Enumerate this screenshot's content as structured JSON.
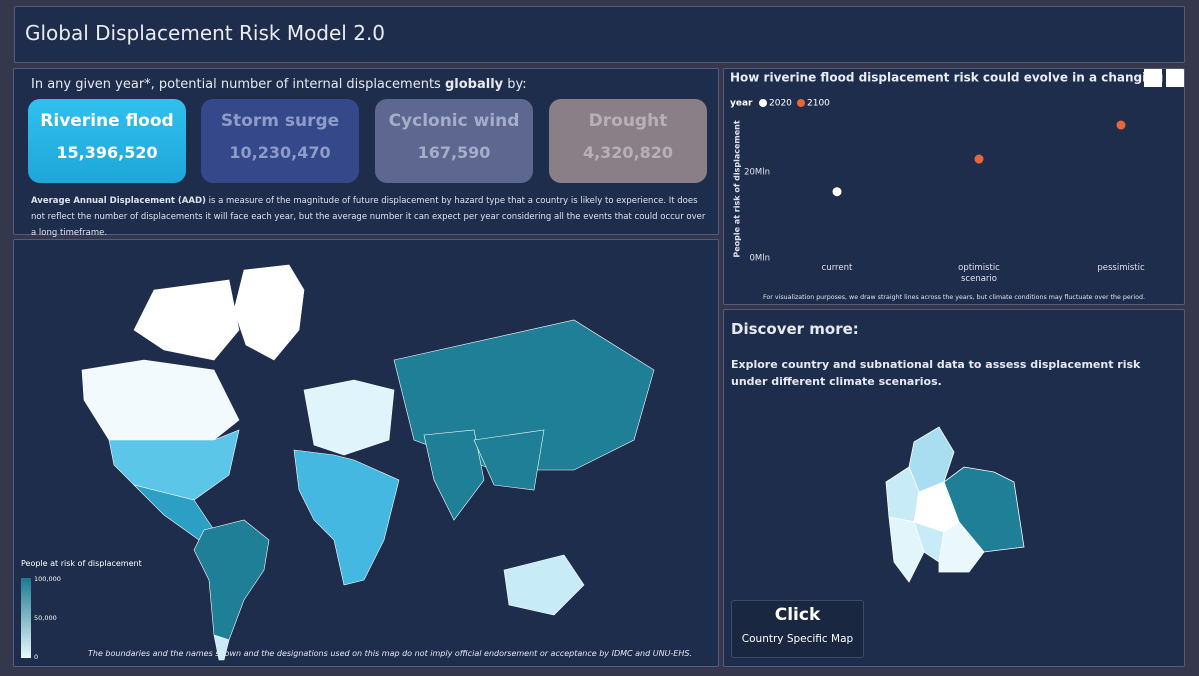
{
  "header": {
    "title": "Global Displacement Risk Model 2.0"
  },
  "summary": {
    "intro_prefix": "In any given year*, potential number of internal displacements",
    "intro_bold": "globally",
    "intro_suffix": "by:",
    "cards": [
      {
        "label": "Riverine flood",
        "value": "15,396,520"
      },
      {
        "label": "Storm surge",
        "value": "10,230,470"
      },
      {
        "label": "Cyclonic wind",
        "value": "167,590"
      },
      {
        "label": "Drought",
        "value": "4,320,820"
      }
    ],
    "note_bold": "Average Annual Displacement (AAD)",
    "note_text": "is a measure of the magnitude of future displacement by hazard type that a country is likely to experience. It does not reflect the number of displacements it will face each year, but the average number it can expect per year considering all the events that could occur over a long timeframe."
  },
  "map": {
    "legend_title": "People at risk of displacement",
    "legend_ticks": [
      "100,000",
      "50,000",
      "0"
    ],
    "disclaimer": "The boundaries and the names shown and the designations used on this map do not imply official endorsement or acceptance by IDMC and UNU-EHS."
  },
  "chart_data": {
    "type": "scatter",
    "title": "How riverine flood displacement risk could evolve in a changing clima",
    "legend_title": "year",
    "y_label": "People at risk of displacement",
    "categories": [
      "current",
      "optimistic scenario",
      "pessimistic"
    ],
    "series": [
      {
        "name": "2020",
        "color": "#ffffff",
        "values": [
          15400000,
          null,
          null
        ]
      },
      {
        "name": "2100",
        "color": "#e8643a",
        "values": [
          null,
          23000000,
          30900000
        ]
      }
    ],
    "ylim": [
      0,
      33000000
    ],
    "yticks": [
      {
        "value": 0,
        "label": "0Mln"
      },
      {
        "value": 20000000,
        "label": "20Mln"
      }
    ],
    "grid": false,
    "footnote": "For visualization purposes, we draw straight lines across the years, but climate conditions may fluctuate over the period."
  },
  "discover": {
    "title": "Discover more:",
    "text": "Explore country and subnational data  to assess displacement risk under different climate scenarios.",
    "button_title": "Click",
    "button_subtitle": "Country Specific Map"
  }
}
